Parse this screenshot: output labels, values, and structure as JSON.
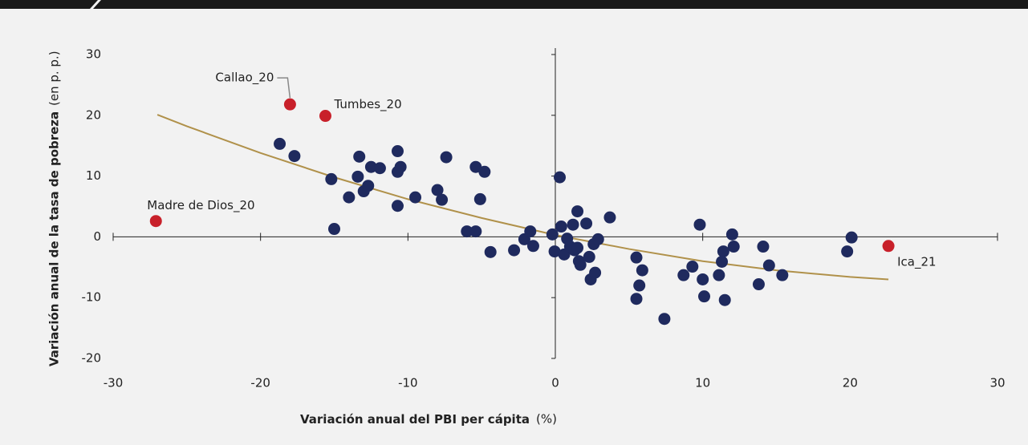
{
  "chart_data": {
    "type": "scatter",
    "x_label": "Variación anual del PBI per cápita",
    "x_unit": "(%)",
    "y_label": "Variación anual de la tasa de pobreza",
    "y_unit": "(en p. p.)",
    "xlim": [
      -30,
      30
    ],
    "xticks": [
      -30,
      -20,
      -10,
      0,
      10,
      20,
      30
    ],
    "ylim": [
      -20,
      30
    ],
    "yticks": [
      -20,
      -10,
      0,
      10,
      20,
      30
    ],
    "points": {
      "color": "#1f2a5e",
      "x": [
        -18.7,
        -17.7,
        -15.2,
        -15.0,
        -14.0,
        -13.3,
        -13.4,
        -13.0,
        -12.7,
        -12.5,
        -11.9,
        -10.7,
        -10.7,
        -10.5,
        -10.7,
        -9.5,
        -8.0,
        -7.7,
        -7.4,
        -6.0,
        -5.1,
        -5.4,
        -4.8,
        -5.4,
        -4.4,
        -2.8,
        -2.1,
        -1.7,
        -1.5,
        -0.2,
        -0.05,
        0.3,
        0.4,
        0.6,
        0.8,
        1.0,
        1.2,
        1.3,
        1.5,
        1.5,
        1.6,
        1.7,
        2.1,
        2.3,
        2.4,
        2.6,
        2.7,
        2.9,
        3.7,
        5.5,
        5.7,
        5.5,
        5.9,
        7.4,
        8.7,
        9.3,
        9.8,
        10.0,
        10.1,
        11.1,
        11.3,
        11.4,
        11.5,
        12.0,
        12.1,
        13.8,
        14.1,
        14.5,
        15.4,
        19.8,
        20.1
      ],
      "y": [
        15.3,
        13.3,
        9.5,
        1.3,
        6.5,
        13.2,
        9.9,
        7.5,
        8.4,
        11.5,
        11.3,
        14.1,
        10.7,
        11.5,
        5.1,
        6.5,
        7.7,
        6.1,
        13.1,
        0.9,
        6.2,
        11.5,
        10.7,
        0.9,
        -2.5,
        -2.2,
        -0.4,
        0.9,
        -1.5,
        0.4,
        -2.4,
        9.8,
        1.7,
        -2.9,
        -0.3,
        -1.6,
        2.0,
        -2.2,
        4.2,
        -1.8,
        -4.0,
        -4.6,
        2.2,
        -3.3,
        -7.0,
        -1.2,
        -5.9,
        -0.4,
        3.2,
        -3.4,
        -8.0,
        -10.2,
        -5.5,
        -13.5,
        -6.3,
        -4.9,
        2.0,
        -7.0,
        -9.8,
        -6.3,
        -4.1,
        -2.4,
        -10.4,
        0.4,
        -1.6,
        -7.8,
        -1.6,
        -4.7,
        -6.3,
        -2.4,
        -0.1
      ]
    },
    "highlighted": {
      "color": "#c8202a",
      "labels": [
        "Callao_20",
        "Tumbes_20",
        "Madre de Dios_20",
        "Ica_21"
      ],
      "x": [
        -18.0,
        -15.6,
        -27.1,
        22.6
      ],
      "y": [
        21.8,
        19.9,
        2.6,
        -1.5
      ]
    },
    "trend": {
      "color": "#b0914a",
      "x": [
        -27,
        -25,
        -20,
        -15,
        -10,
        -5,
        0,
        5,
        10,
        15,
        20,
        22.6
      ],
      "y": [
        20.1,
        18.2,
        13.8,
        9.8,
        6.2,
        3.1,
        0.3,
        -2.0,
        -4.0,
        -5.5,
        -6.6,
        -7.0
      ]
    }
  }
}
